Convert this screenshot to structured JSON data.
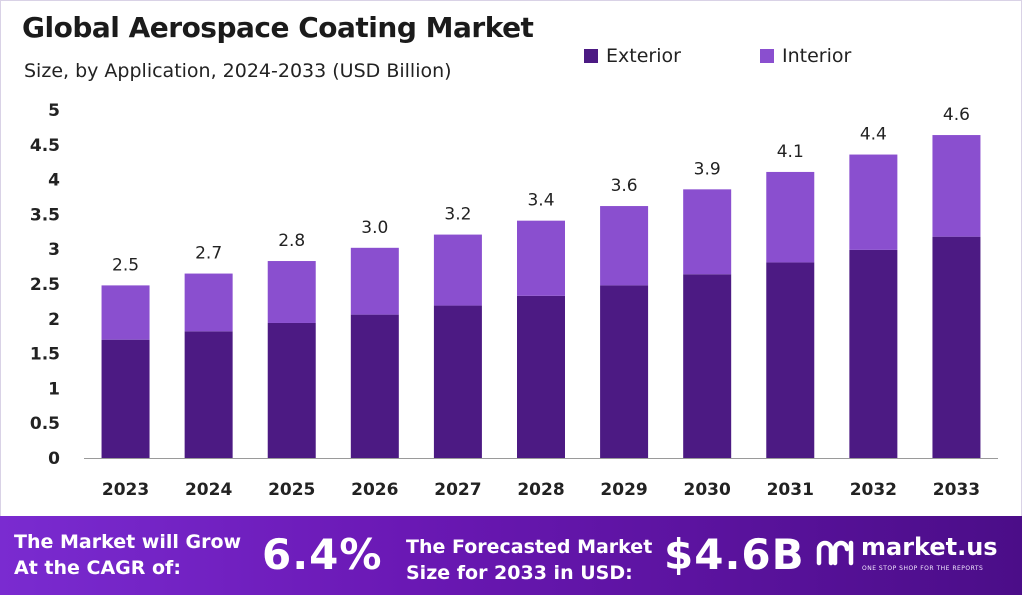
{
  "header": {
    "title": "Global Aerospace Coating Market",
    "subtitle": "Size, by Application, 2024-2033 (USD Billion)"
  },
  "legend": [
    {
      "label": "Exterior",
      "color": "#4c1a83"
    },
    {
      "label": "Interior",
      "color": "#8a4fcf"
    }
  ],
  "chart_data": {
    "type": "bar",
    "stacked": true,
    "title": "Global Aerospace Coating Market",
    "subtitle": "Size, by Application, 2024-2033 (USD Billion)",
    "categories": [
      "2023",
      "2024",
      "2025",
      "2026",
      "2027",
      "2028",
      "2029",
      "2030",
      "2031",
      "2032",
      "2033"
    ],
    "series": [
      {
        "name": "Exterior",
        "color": "#4c1a83",
        "values": [
          1.7,
          1.82,
          1.94,
          2.06,
          2.19,
          2.33,
          2.48,
          2.64,
          2.81,
          2.99,
          3.18
        ]
      },
      {
        "name": "Interior",
        "color": "#8a4fcf",
        "values": [
          0.78,
          0.83,
          0.89,
          0.96,
          1.02,
          1.08,
          1.14,
          1.22,
          1.3,
          1.37,
          1.46
        ]
      }
    ],
    "totals": [
      "2.5",
      "2.7",
      "2.8",
      "3.0",
      "3.2",
      "3.4",
      "3.6",
      "3.9",
      "4.1",
      "4.4",
      "4.6"
    ],
    "ylim": [
      0,
      5
    ],
    "yticks": [
      "0",
      "0.5",
      "1",
      "1.5",
      "2",
      "2.5",
      "3",
      "3.5",
      "4",
      "4.5",
      "5"
    ],
    "grid": false,
    "legend_position": "top-right"
  },
  "footer": {
    "cagr_line1": "The Market will Grow",
    "cagr_line2": "At the CAGR of:",
    "cagr_value": "6.4%",
    "forecast_line1": "The Forecasted Market",
    "forecast_line2": "Size for 2033 in USD:",
    "forecast_value": "$4.6B",
    "brand": "market.us",
    "tagline": "ONE STOP SHOP FOR THE REPORTS"
  }
}
